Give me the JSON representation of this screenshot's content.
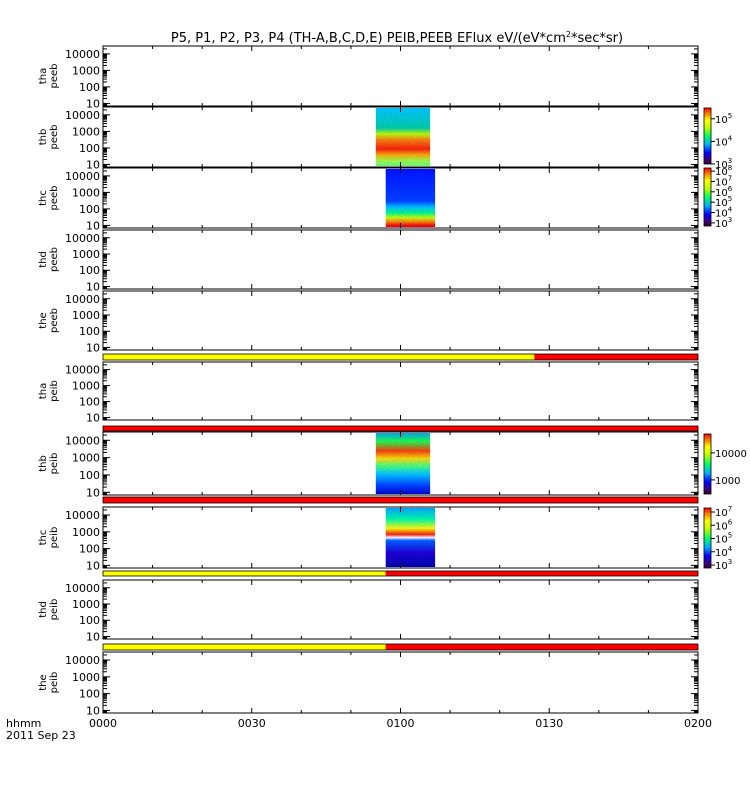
{
  "chart_data": {
    "type": "heatmap",
    "title": "P5, P1, P2, P3, P4 (TH-A,B,C,D,E) PEIB,PEEB EFlux eV/(eV*cm²*sec*sr)",
    "title_main": "P5, P1, P2, P3, P4 (TH-A,B,C,D,E) PEIB,PEEB EFlux eV/(eV*cm",
    "title_sup": "2",
    "title_end": "*sec*sr)",
    "x_axis": {
      "ticks": [
        "0000",
        "0030",
        "0100",
        "0130",
        "0200"
      ],
      "range_minutes": [
        0,
        120
      ],
      "label_top": "hhmm",
      "label_bottom": "2011 Sep 23"
    },
    "y_axis": {
      "scale": "log",
      "range": [
        7,
        30000
      ],
      "ticks": [
        "10",
        "100",
        "1000",
        "10000"
      ]
    },
    "panels": [
      {
        "probe": "tha",
        "species": "peeb",
        "ylabel": [
          "tha",
          "peeb"
        ],
        "data_range_minutes": null,
        "status_bar": null,
        "colorbar": null
      },
      {
        "probe": "thb",
        "species": "peeb",
        "ylabel": [
          "thb",
          "peeb"
        ],
        "data_range_minutes": [
          55,
          66
        ],
        "status_bar": null,
        "colorbar": {
          "scale": "log",
          "range": [
            1000,
            300000
          ],
          "labels": [
            {
              "base": "10",
              "exp": "5",
              "value": 100000
            },
            {
              "base": "10",
              "exp": "4",
              "value": 10000
            },
            {
              "base": "10",
              "exp": "3",
              "value": 1000
            }
          ]
        }
      },
      {
        "probe": "thc",
        "species": "peeb",
        "ylabel": [
          "thc",
          "peeb"
        ],
        "data_range_minutes": [
          57,
          67
        ],
        "status_bar": null,
        "colorbar": {
          "scale": "log",
          "range": [
            500,
            200000000
          ],
          "labels": [
            {
              "base": "10",
              "exp": "8",
              "value": 100000000
            },
            {
              "base": "10",
              "exp": "7",
              "value": 10000000
            },
            {
              "base": "10",
              "exp": "6",
              "value": 1000000
            },
            {
              "base": "10",
              "exp": "5",
              "value": 100000
            },
            {
              "base": "10",
              "exp": "4",
              "value": 10000
            },
            {
              "base": "10",
              "exp": "3",
              "value": 1000
            }
          ]
        }
      },
      {
        "probe": "thd",
        "species": "peeb",
        "ylabel": [
          "thd",
          "peeb"
        ],
        "data_range_minutes": null,
        "status_bar": null,
        "colorbar": null
      },
      {
        "probe": "the",
        "species": "peeb",
        "ylabel": [
          "the",
          "peeb"
        ],
        "data_range_minutes": null,
        "status_bar": [
          {
            "from": 0,
            "to": 87,
            "color": "#ffff00"
          },
          {
            "from": 87,
            "to": 120,
            "color": "#ff0000"
          }
        ],
        "colorbar": null
      },
      {
        "probe": "tha",
        "species": "peib",
        "ylabel": [
          "tha",
          "peib"
        ],
        "data_range_minutes": null,
        "status_bar": [
          {
            "from": 0,
            "to": 120,
            "color": "#ff0000"
          }
        ],
        "colorbar": null
      },
      {
        "probe": "thb",
        "species": "peib",
        "ylabel": [
          "thb",
          "peib"
        ],
        "data_range_minutes": [
          55,
          66
        ],
        "status_bar": [
          {
            "from": 0,
            "to": 120,
            "color": "#ff0000"
          }
        ],
        "colorbar": {
          "scale": "log",
          "range": [
            300,
            50000
          ],
          "labels": [
            {
              "base": "10000",
              "exp": "",
              "value": 10000
            },
            {
              "base": "1000",
              "exp": "",
              "value": 1000
            }
          ]
        }
      },
      {
        "probe": "thc",
        "species": "peib",
        "ylabel": [
          "thc",
          "peib"
        ],
        "data_range_minutes": [
          57,
          67
        ],
        "status_bar": [
          {
            "from": 0,
            "to": 57,
            "color": "#ffff00"
          },
          {
            "from": 57,
            "to": 120,
            "color": "#ff0000"
          }
        ],
        "colorbar": {
          "scale": "log",
          "range": [
            600,
            20000000
          ],
          "labels": [
            {
              "base": "10",
              "exp": "7",
              "value": 10000000
            },
            {
              "base": "10",
              "exp": "6",
              "value": 1000000
            },
            {
              "base": "10",
              "exp": "5",
              "value": 100000
            },
            {
              "base": "10",
              "exp": "4",
              "value": 10000
            },
            {
              "base": "10",
              "exp": "3",
              "value": 1000
            }
          ]
        }
      },
      {
        "probe": "thd",
        "species": "peib",
        "ylabel": [
          "thd",
          "peib"
        ],
        "data_range_minutes": null,
        "status_bar": [
          {
            "from": 0,
            "to": 57,
            "color": "#ffff00"
          },
          {
            "from": 57,
            "to": 120,
            "color": "#ff0000"
          }
        ],
        "colorbar": null
      },
      {
        "probe": "the",
        "species": "peib",
        "ylabel": [
          "the",
          "peib"
        ],
        "data_range_minutes": null,
        "status_bar": null,
        "colorbar": null
      }
    ]
  }
}
